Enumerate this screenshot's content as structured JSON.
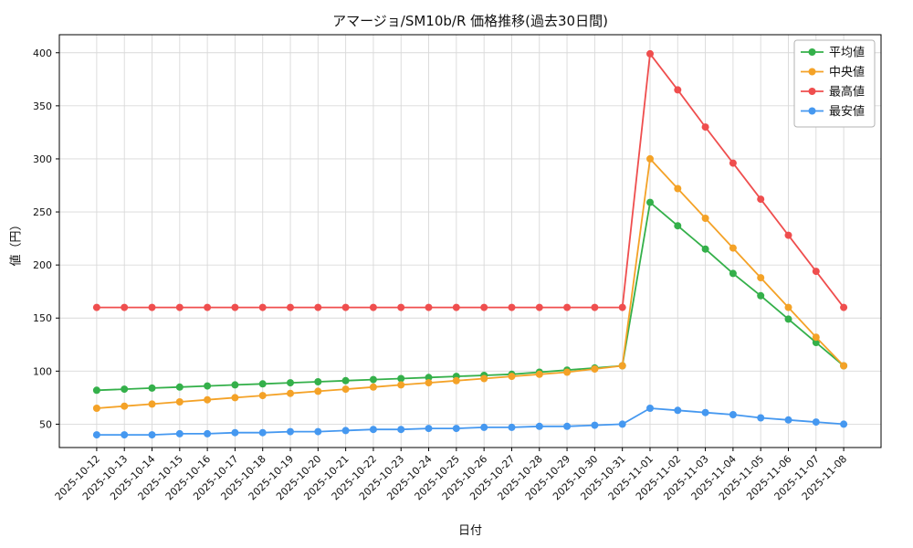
{
  "chart_data": {
    "type": "line",
    "title": "アマージョ/SM10b/R 価格推移(過去30日間)",
    "xlabel": "日付",
    "ylabel": "値（円）",
    "ylim": [
      28,
      417
    ],
    "yticks": [
      50,
      100,
      150,
      200,
      250,
      300,
      350,
      400
    ],
    "grid": true,
    "grid_color": "#d9d9d9",
    "axis_color": "#000000",
    "legend_position": "upper right",
    "categories": [
      "2025-10-12",
      "2025-10-13",
      "2025-10-14",
      "2025-10-15",
      "2025-10-16",
      "2025-10-17",
      "2025-10-18",
      "2025-10-19",
      "2025-10-20",
      "2025-10-21",
      "2025-10-22",
      "2025-10-23",
      "2025-10-24",
      "2025-10-25",
      "2025-10-26",
      "2025-10-27",
      "2025-10-28",
      "2025-10-29",
      "2025-10-30",
      "2025-10-31",
      "2025-11-01",
      "2025-11-02",
      "2025-11-03",
      "2025-11-04",
      "2025-11-05",
      "2025-11-06",
      "2025-11-07",
      "2025-11-08"
    ],
    "series": [
      {
        "key": "average",
        "name": "平均値",
        "color": "#34b04a",
        "values": [
          82,
          83,
          84,
          85,
          86,
          87,
          88,
          89,
          90,
          91,
          92,
          93,
          94,
          95,
          96,
          97,
          99,
          101,
          103,
          105,
          259,
          237,
          215,
          192,
          171,
          149,
          127,
          105
        ]
      },
      {
        "key": "median",
        "name": "中央値",
        "color": "#f4a227",
        "values": [
          65,
          67,
          69,
          71,
          73,
          75,
          77,
          79,
          81,
          83,
          85,
          87,
          89,
          91,
          93,
          95,
          97,
          99,
          102,
          105,
          300,
          272,
          244,
          216,
          188,
          160,
          132,
          105
        ]
      },
      {
        "key": "max",
        "name": "最高値",
        "color": "#ef4e4e",
        "values": [
          160,
          160,
          160,
          160,
          160,
          160,
          160,
          160,
          160,
          160,
          160,
          160,
          160,
          160,
          160,
          160,
          160,
          160,
          160,
          160,
          399,
          365,
          330,
          296,
          262,
          228,
          194,
          160
        ]
      },
      {
        "key": "min",
        "name": "最安値",
        "color": "#4598f0",
        "values": [
          40,
          40,
          40,
          41,
          41,
          42,
          42,
          43,
          43,
          44,
          45,
          45,
          46,
          46,
          47,
          47,
          48,
          48,
          49,
          50,
          65,
          63,
          61,
          59,
          56,
          54,
          52,
          50
        ]
      }
    ]
  }
}
